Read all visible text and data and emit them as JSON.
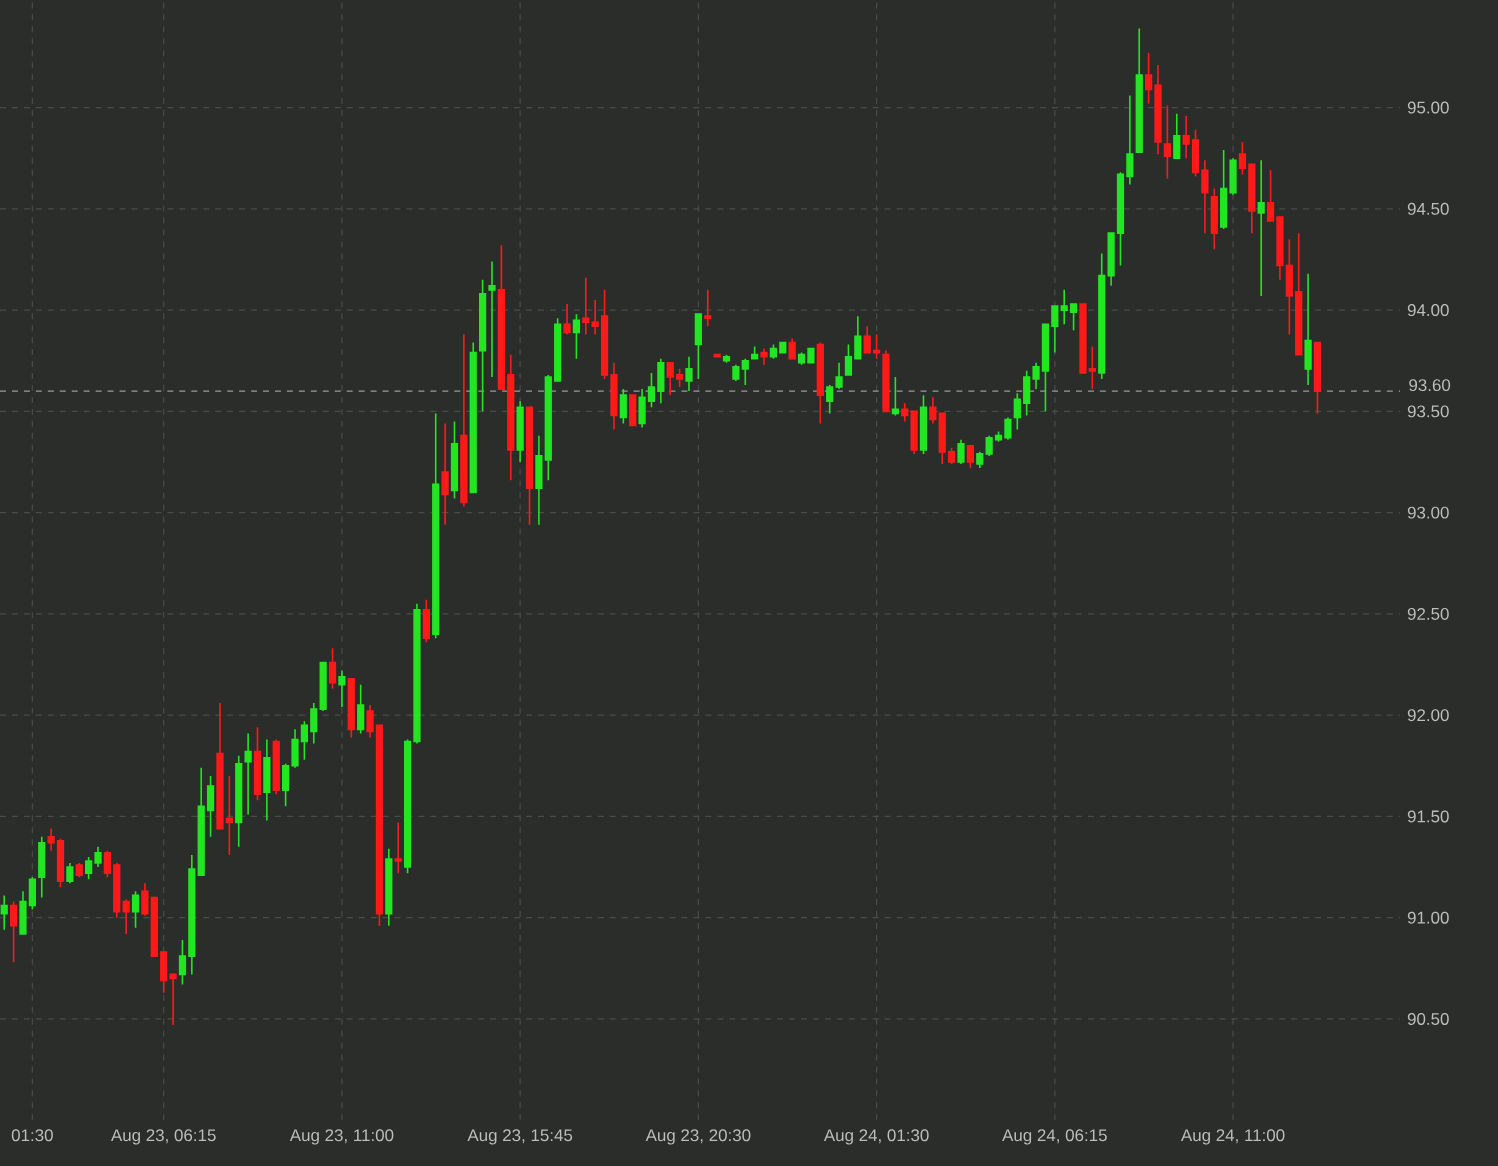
{
  "chart_data": {
    "type": "candlestick",
    "categories": [
      null,
      null,
      null,
      "01:30",
      null,
      null,
      null,
      null,
      null,
      null,
      null,
      null,
      null,
      null,
      null,
      null,
      null,
      "Aug 23, 06:15",
      null,
      null,
      null,
      null,
      null,
      null,
      null,
      null,
      null,
      null,
      null,
      null,
      null,
      null,
      null,
      null,
      null,
      null,
      "Aug 23, 11:00",
      null,
      null,
      null,
      null,
      null,
      null,
      null,
      null,
      null,
      null,
      null,
      null,
      null,
      null,
      null,
      null,
      null,
      null,
      "Aug 23, 15:45",
      null,
      null,
      null,
      null,
      null,
      null,
      null,
      null,
      null,
      null,
      null,
      null,
      null,
      null,
      null,
      null,
      null,
      null,
      "Aug 23, 20:30",
      null,
      null,
      null,
      null,
      null,
      null,
      null,
      null,
      null,
      null,
      null,
      null,
      null,
      null,
      null,
      null,
      null,
      null,
      "Aug 24, 01:30",
      null,
      null,
      null,
      null,
      null,
      null,
      null,
      null,
      null,
      null,
      null,
      null,
      null,
      null,
      null,
      null,
      null,
      null,
      "Aug 24, 06:15",
      null,
      null,
      null,
      null,
      null,
      null,
      null,
      null,
      null,
      null,
      null,
      null,
      null,
      null,
      null,
      null,
      null,
      null,
      "Aug 24, 11:00",
      null,
      null,
      null,
      null,
      null,
      null,
      null,
      null,
      null
    ],
    "ohlc": [
      [
        91.02,
        91.11,
        90.94,
        91.06
      ],
      [
        91.06,
        91.08,
        90.78,
        90.96
      ],
      [
        90.92,
        91.13,
        90.92,
        91.08
      ],
      [
        91.06,
        91.2,
        91.04,
        91.19
      ],
      [
        91.2,
        91.4,
        91.1,
        91.37
      ],
      [
        91.4,
        91.44,
        91.33,
        91.37
      ],
      [
        91.38,
        91.39,
        91.15,
        91.18
      ],
      [
        91.18,
        91.27,
        91.17,
        91.25
      ],
      [
        91.26,
        91.27,
        91.2,
        91.21
      ],
      [
        91.22,
        91.3,
        91.19,
        91.28
      ],
      [
        91.27,
        91.35,
        91.25,
        91.32
      ],
      [
        91.32,
        91.33,
        91.2,
        91.22
      ],
      [
        91.26,
        91.27,
        91.0,
        91.03
      ],
      [
        91.08,
        91.09,
        90.92,
        91.03
      ],
      [
        91.03,
        91.13,
        90.95,
        91.11
      ],
      [
        91.13,
        91.17,
        91.01,
        91.02
      ],
      [
        91.1,
        91.1,
        90.81,
        90.81
      ],
      [
        90.83,
        90.83,
        90.63,
        90.69
      ],
      [
        90.72,
        90.72,
        90.47,
        90.7
      ],
      [
        90.72,
        90.89,
        90.67,
        90.81
      ],
      [
        90.81,
        91.31,
        90.72,
        91.24
      ],
      [
        91.21,
        91.74,
        91.21,
        91.55
      ],
      [
        91.53,
        91.7,
        91.4,
        91.65
      ],
      [
        91.81,
        92.06,
        91.44,
        91.44
      ],
      [
        91.49,
        91.7,
        91.31,
        91.47
      ],
      [
        91.47,
        91.8,
        91.35,
        91.76
      ],
      [
        91.77,
        91.91,
        91.51,
        91.82
      ],
      [
        91.82,
        91.94,
        91.58,
        91.61
      ],
      [
        91.62,
        91.88,
        91.48,
        91.79
      ],
      [
        91.87,
        91.88,
        91.61,
        91.63
      ],
      [
        91.63,
        91.76,
        91.55,
        91.75
      ],
      [
        91.75,
        91.93,
        91.74,
        91.88
      ],
      [
        91.87,
        91.97,
        91.78,
        91.95
      ],
      [
        91.92,
        92.06,
        91.86,
        92.03
      ],
      [
        92.03,
        92.26,
        92.02,
        92.26
      ],
      [
        92.26,
        92.33,
        92.13,
        92.16
      ],
      [
        92.15,
        92.22,
        92.04,
        92.19
      ],
      [
        92.18,
        92.18,
        91.89,
        91.93
      ],
      [
        91.93,
        92.15,
        91.91,
        92.05
      ],
      [
        92.02,
        92.05,
        91.89,
        91.92
      ],
      [
        91.95,
        91.95,
        90.96,
        91.02
      ],
      [
        91.02,
        91.34,
        90.96,
        91.29
      ],
      [
        91.29,
        91.47,
        91.22,
        91.28
      ],
      [
        91.25,
        91.88,
        91.22,
        91.87
      ],
      [
        91.87,
        92.55,
        91.86,
        92.52
      ],
      [
        92.52,
        92.57,
        92.36,
        92.38
      ],
      [
        92.4,
        93.49,
        92.38,
        93.14
      ],
      [
        93.2,
        93.44,
        92.94,
        93.09
      ],
      [
        93.11,
        93.45,
        93.07,
        93.34
      ],
      [
        93.38,
        93.88,
        93.03,
        93.05
      ],
      [
        93.1,
        93.84,
        93.1,
        93.79
      ],
      [
        93.8,
        94.15,
        93.5,
        94.08
      ],
      [
        94.1,
        94.24,
        93.67,
        94.12
      ],
      [
        94.1,
        94.32,
        93.61,
        93.61
      ],
      [
        93.68,
        93.78,
        93.16,
        93.31
      ],
      [
        93.31,
        93.55,
        93.25,
        93.52
      ],
      [
        93.52,
        93.52,
        92.94,
        93.12
      ],
      [
        93.12,
        93.38,
        92.94,
        93.28
      ],
      [
        93.26,
        93.68,
        93.16,
        93.67
      ],
      [
        93.65,
        93.96,
        93.65,
        93.93
      ],
      [
        93.93,
        94.03,
        93.88,
        93.89
      ],
      [
        93.89,
        93.98,
        93.76,
        93.95
      ],
      [
        93.96,
        94.16,
        93.88,
        93.94
      ],
      [
        93.94,
        94.05,
        93.88,
        93.92
      ],
      [
        93.97,
        94.1,
        93.66,
        93.68
      ],
      [
        93.68,
        93.74,
        93.41,
        93.48
      ],
      [
        93.47,
        93.61,
        93.44,
        93.58
      ],
      [
        93.58,
        93.58,
        93.43,
        93.43
      ],
      [
        93.44,
        93.61,
        93.42,
        93.57
      ],
      [
        93.55,
        93.69,
        93.52,
        93.62
      ],
      [
        93.6,
        93.76,
        93.54,
        93.74
      ],
      [
        93.74,
        93.74,
        93.58,
        93.67
      ],
      [
        93.68,
        93.71,
        93.62,
        93.66
      ],
      [
        93.65,
        93.77,
        93.6,
        93.71
      ],
      [
        93.83,
        93.98,
        93.66,
        93.98
      ],
      [
        93.97,
        94.1,
        93.92,
        93.96
      ],
      [
        93.78,
        93.78,
        93.77,
        93.77
      ],
      [
        93.75,
        93.78,
        93.74,
        93.77
      ],
      [
        93.66,
        93.73,
        93.65,
        93.72
      ],
      [
        93.71,
        93.76,
        93.63,
        93.75
      ],
      [
        93.76,
        93.82,
        93.76,
        93.78
      ],
      [
        93.79,
        93.81,
        93.73,
        93.77
      ],
      [
        93.77,
        93.83,
        93.76,
        93.81
      ],
      [
        93.79,
        93.84,
        93.79,
        93.84
      ],
      [
        93.84,
        93.86,
        93.76,
        93.76
      ],
      [
        93.74,
        93.79,
        93.73,
        93.78
      ],
      [
        93.74,
        93.81,
        93.74,
        93.81
      ],
      [
        93.83,
        93.84,
        93.44,
        93.58
      ],
      [
        93.55,
        93.63,
        93.49,
        93.62
      ],
      [
        93.62,
        93.74,
        93.61,
        93.67
      ],
      [
        93.68,
        93.83,
        93.68,
        93.77
      ],
      [
        93.76,
        93.97,
        93.76,
        93.87
      ],
      [
        93.87,
        93.92,
        93.79,
        93.79
      ],
      [
        93.8,
        93.88,
        93.76,
        93.79
      ],
      [
        93.78,
        93.8,
        93.5,
        93.5
      ],
      [
        93.49,
        93.67,
        93.48,
        93.51
      ],
      [
        93.51,
        93.54,
        93.45,
        93.48
      ],
      [
        93.5,
        93.5,
        93.29,
        93.31
      ],
      [
        93.31,
        93.58,
        93.29,
        93.52
      ],
      [
        93.52,
        93.57,
        93.44,
        93.46
      ],
      [
        93.49,
        93.49,
        93.24,
        93.3
      ],
      [
        93.3,
        93.32,
        93.24,
        93.25
      ],
      [
        93.25,
        93.36,
        93.24,
        93.34
      ],
      [
        93.33,
        93.33,
        93.22,
        93.25
      ],
      [
        93.24,
        93.3,
        93.22,
        93.29
      ],
      [
        93.29,
        93.38,
        93.28,
        93.37
      ],
      [
        93.36,
        93.4,
        93.35,
        93.38
      ],
      [
        93.37,
        93.47,
        93.36,
        93.46
      ],
      [
        93.47,
        93.59,
        93.41,
        93.56
      ],
      [
        93.54,
        93.7,
        93.48,
        93.67
      ],
      [
        93.66,
        93.74,
        93.61,
        93.72
      ],
      [
        93.7,
        93.93,
        93.5,
        93.93
      ],
      [
        93.92,
        94.02,
        93.79,
        94.02
      ],
      [
        94.0,
        94.1,
        93.93,
        94.02
      ],
      [
        93.99,
        94.03,
        93.9,
        94.03
      ],
      [
        94.03,
        94.03,
        93.69,
        93.69
      ],
      [
        93.71,
        93.82,
        93.61,
        93.7
      ],
      [
        93.69,
        94.28,
        93.66,
        94.17
      ],
      [
        94.17,
        94.38,
        94.12,
        94.38
      ],
      [
        94.38,
        94.68,
        94.22,
        94.67
      ],
      [
        94.66,
        95.06,
        94.62,
        94.77
      ],
      [
        94.78,
        95.39,
        94.78,
        95.16
      ],
      [
        95.16,
        95.27,
        95.02,
        95.09
      ],
      [
        95.11,
        95.21,
        94.77,
        94.83
      ],
      [
        94.82,
        95.01,
        94.65,
        94.76
      ],
      [
        94.75,
        94.97,
        94.75,
        94.86
      ],
      [
        94.86,
        94.96,
        94.75,
        94.82
      ],
      [
        94.84,
        94.89,
        94.66,
        94.68
      ],
      [
        94.69,
        94.74,
        94.38,
        94.58
      ],
      [
        94.56,
        94.6,
        94.3,
        94.38
      ],
      [
        94.41,
        94.79,
        94.4,
        94.6
      ],
      [
        94.58,
        94.75,
        94.57,
        94.74
      ],
      [
        94.77,
        94.83,
        94.67,
        94.7
      ],
      [
        94.72,
        94.72,
        94.38,
        94.49
      ],
      [
        94.48,
        94.74,
        94.07,
        94.53
      ],
      [
        94.53,
        94.69,
        94.44,
        94.44
      ],
      [
        94.46,
        94.46,
        94.15,
        94.22
      ],
      [
        94.22,
        94.35,
        93.88,
        94.07
      ],
      [
        94.09,
        94.38,
        93.78,
        93.78
      ],
      [
        93.71,
        94.18,
        93.63,
        93.85
      ],
      [
        93.84,
        93.84,
        93.49,
        93.6
      ]
    ],
    "colors": [
      "#22e622",
      "#ff1a1a",
      "#22e622",
      "#22e622",
      "#22e622",
      "#ff1a1a",
      "#ff1a1a",
      "#22e622",
      "#ff1a1a",
      "#22e622",
      "#22e622",
      "#ff1a1a",
      "#ff1a1a",
      "#ff1a1a",
      "#22e622",
      "#ff1a1a",
      "#ff1a1a",
      "#ff1a1a",
      "#ff1a1a",
      "#22e622",
      "#22e622",
      "#22e622",
      "#22e622",
      "#ff1a1a",
      "#ff1a1a",
      "#22e622",
      "#22e622",
      "#ff1a1a",
      "#22e622",
      "#ff1a1a",
      "#22e622",
      "#22e622",
      "#22e622",
      "#22e622",
      "#22e622",
      "#ff1a1a",
      "#22e622",
      "#ff1a1a",
      "#22e622",
      "#ff1a1a",
      "#ff1a1a",
      "#22e622",
      "#ff1a1a",
      "#22e622",
      "#22e622",
      "#ff1a1a",
      "#22e622",
      "#ff1a1a",
      "#22e622",
      "#ff1a1a",
      "#22e622",
      "#22e622",
      "#22e622",
      "#ff1a1a",
      "#ff1a1a",
      "#22e622",
      "#ff1a1a",
      "#22e622",
      "#22e622",
      "#22e622",
      "#ff1a1a",
      "#22e622",
      "#ff1a1a",
      "#ff1a1a",
      "#ff1a1a",
      "#ff1a1a",
      "#22e622",
      "#ff1a1a",
      "#22e622",
      "#22e622",
      "#22e622",
      "#ff1a1a",
      "#ff1a1a",
      "#22e622",
      "#22e622",
      "#ff1a1a",
      "#ff1a1a",
      "#22e622",
      "#22e622",
      "#22e622",
      "#22e622",
      "#ff1a1a",
      "#22e622",
      "#22e622",
      "#ff1a1a",
      "#22e622",
      "#22e622",
      "#ff1a1a",
      "#22e622",
      "#22e622",
      "#22e622",
      "#22e622",
      "#ff1a1a",
      "#ff1a1a",
      "#ff1a1a",
      "#22e622",
      "#ff1a1a",
      "#ff1a1a",
      "#22e622",
      "#ff1a1a",
      "#ff1a1a",
      "#ff1a1a",
      "#22e622",
      "#ff1a1a",
      "#22e622",
      "#22e622",
      "#22e622",
      "#22e622",
      "#22e622",
      "#22e622",
      "#22e622",
      "#22e622",
      "#22e622",
      "#22e622",
      "#22e622",
      "#ff1a1a",
      "#ff1a1a",
      "#22e622",
      "#22e622",
      "#22e622",
      "#22e622",
      "#22e622",
      "#ff1a1a",
      "#ff1a1a",
      "#ff1a1a",
      "#22e622",
      "#ff1a1a",
      "#ff1a1a",
      "#ff1a1a",
      "#ff1a1a",
      "#22e622",
      "#22e622",
      "#ff1a1a",
      "#ff1a1a",
      "#22e622",
      "#ff1a1a",
      "#ff1a1a",
      "#ff1a1a",
      "#ff1a1a",
      "#22e622",
      "#ff1a1a"
    ],
    "ylim": [
      90.0,
      95.53
    ],
    "yticks": [
      {
        "value": 90.5,
        "label": "90.50"
      },
      {
        "value": 91,
        "label": "91.00"
      },
      {
        "value": 91.5,
        "label": "91.50"
      },
      {
        "value": 92,
        "label": "92.00"
      },
      {
        "value": 92.5,
        "label": "92.50"
      },
      {
        "value": 93,
        "label": "93.00"
      },
      {
        "value": 93.5,
        "label": "93.50"
      },
      {
        "value": 94,
        "label": "94.00"
      },
      {
        "value": 94.5,
        "label": "94.50"
      },
      {
        "value": 95,
        "label": "95.00"
      }
    ],
    "grid": true,
    "ref_lines": [
      {
        "axis": "y",
        "value": 93.6,
        "label": "93.60",
        "color": "#9a9a9a",
        "line_style": "dashed"
      }
    ]
  }
}
